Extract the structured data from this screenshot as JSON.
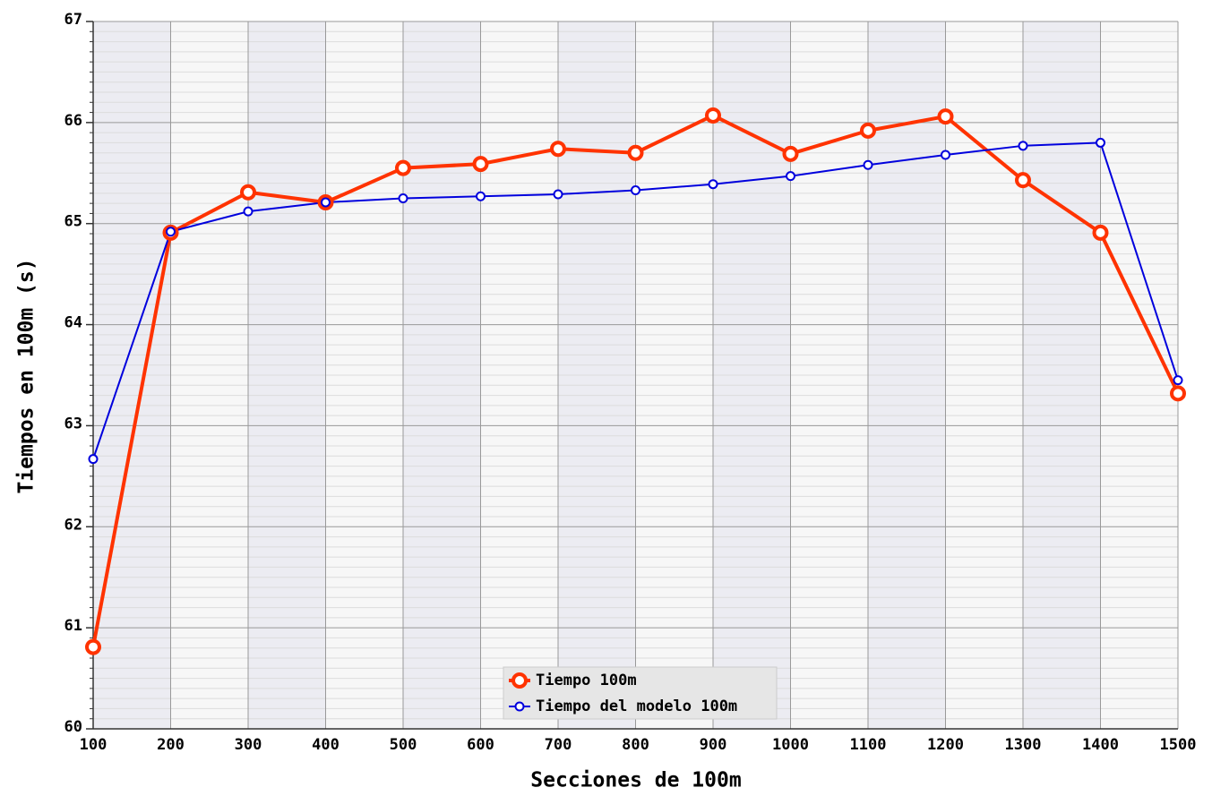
{
  "chart_data": {
    "type": "line",
    "x_label": "Secciones de 100m",
    "y_label": "Tiempos en 100m (s)",
    "x": [
      100,
      200,
      300,
      400,
      500,
      600,
      700,
      800,
      900,
      1000,
      1100,
      1200,
      1300,
      1400,
      1500
    ],
    "series": [
      {
        "name": "Tiempo 100m",
        "color": "#ff3300",
        "values": [
          60.81,
          64.91,
          65.31,
          65.21,
          65.55,
          65.59,
          65.74,
          65.7,
          66.07,
          65.69,
          65.92,
          66.06,
          65.43,
          64.91,
          63.32
        ]
      },
      {
        "name": "Tiempo del modelo 100m",
        "color": "#0000dd",
        "values": [
          62.67,
          64.92,
          65.12,
          65.21,
          65.25,
          65.27,
          65.29,
          65.33,
          65.39,
          65.47,
          65.58,
          65.68,
          65.77,
          65.8,
          63.45
        ]
      }
    ],
    "xlim": [
      100,
      1500
    ],
    "xticks": [
      100,
      200,
      300,
      400,
      500,
      600,
      700,
      800,
      900,
      1000,
      1100,
      1200,
      1300,
      1400,
      1500
    ],
    "ylim": [
      60,
      67
    ],
    "yticks": [
      60,
      61,
      62,
      63,
      64,
      65,
      66,
      67
    ],
    "grid": true,
    "legend": "bottom"
  }
}
